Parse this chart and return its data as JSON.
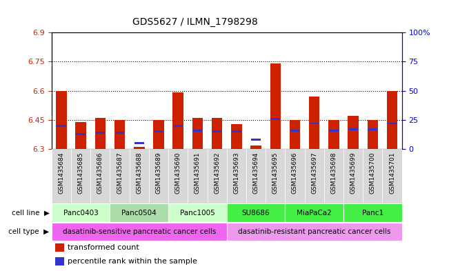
{
  "title": "GDS5627 / ILMN_1798298",
  "samples": [
    "GSM1435684",
    "GSM1435685",
    "GSM1435686",
    "GSM1435687",
    "GSM1435688",
    "GSM1435689",
    "GSM1435690",
    "GSM1435691",
    "GSM1435692",
    "GSM1435693",
    "GSM1435694",
    "GSM1435695",
    "GSM1435696",
    "GSM1435697",
    "GSM1435698",
    "GSM1435699",
    "GSM1435700",
    "GSM1435701"
  ],
  "transformed_count": [
    6.6,
    6.44,
    6.46,
    6.45,
    6.31,
    6.45,
    6.59,
    6.46,
    6.46,
    6.43,
    6.32,
    6.74,
    6.45,
    6.57,
    6.45,
    6.47,
    6.45,
    6.6
  ],
  "percentile_rank": [
    20,
    13,
    14,
    14,
    5,
    15,
    20,
    16,
    15,
    15,
    8,
    26,
    16,
    22,
    16,
    17,
    17,
    22
  ],
  "ymin": 6.3,
  "ymax": 6.9,
  "yticks": [
    6.3,
    6.45,
    6.6,
    6.75,
    6.9
  ],
  "right_yticks": [
    0,
    25,
    50,
    75,
    100
  ],
  "right_ytick_labels": [
    "0",
    "25",
    "50",
    "75",
    "100%"
  ],
  "dotted_lines": [
    6.45,
    6.6,
    6.75
  ],
  "bar_color": "#cc2200",
  "percentile_color": "#3333cc",
  "cell_lines": [
    {
      "label": "Panc0403",
      "start": 0,
      "end": 3,
      "color": "#ccffcc"
    },
    {
      "label": "Panc0504",
      "start": 3,
      "end": 6,
      "color": "#aaddaa"
    },
    {
      "label": "Panc1005",
      "start": 6,
      "end": 9,
      "color": "#ccffcc"
    },
    {
      "label": "SU8686",
      "start": 9,
      "end": 12,
      "color": "#44ee44"
    },
    {
      "label": "MiaPaCa2",
      "start": 12,
      "end": 15,
      "color": "#44ee44"
    },
    {
      "label": "Panc1",
      "start": 15,
      "end": 18,
      "color": "#44ee44"
    }
  ],
  "cell_types": [
    {
      "label": "dasatinib-sensitive pancreatic cancer cells",
      "start": 0,
      "end": 9,
      "color": "#ee66ee"
    },
    {
      "label": "dasatinib-resistant pancreatic cancer cells",
      "start": 9,
      "end": 18,
      "color": "#ee99ee"
    }
  ],
  "legend_items": [
    {
      "label": "transformed count",
      "color": "#cc2200"
    },
    {
      "label": "percentile rank within the sample",
      "color": "#3333cc"
    }
  ],
  "bar_width": 0.55,
  "bg_color": "#ffffff",
  "left_label_color": "#cc2200",
  "right_label_color": "#0000cc"
}
